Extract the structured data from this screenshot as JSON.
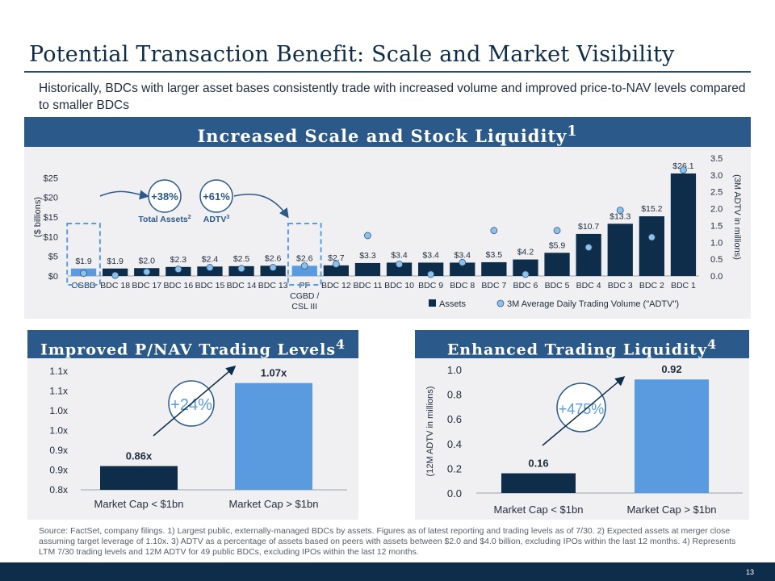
{
  "title": "Potential Transaction Benefit: Scale and Market Visibility",
  "subtitle": "Historically, BDCs with larger asset bases consistently trade with increased volume and improved price-to-NAV levels compared to smaller BDCs",
  "sections": {
    "top": "Increased Scale and Stock Liquidity",
    "top_sup": "1",
    "left": "Improved P/NAV Trading Levels",
    "left_sup": "4",
    "right": "Enhanced Trading Liquidity",
    "right_sup": "4"
  },
  "callouts": {
    "assets_pct": "+38%",
    "assets_label": "Total Assets",
    "assets_sup": "2",
    "adtv_pct": "+61%",
    "adtv_label": "ADTV",
    "adtv_sup": "3",
    "pnav_pct": "+24%",
    "liq_pct": "+475%"
  },
  "colors": {
    "navy": "#0e2d4a",
    "light_blue": "#5a9be0",
    "accent": "#2b5a8a",
    "dot": "#8ec0e8"
  },
  "chart_data": [
    {
      "type": "bar",
      "title": "Increased Scale and Stock Liquidity",
      "categories": [
        "CGBD",
        "BDC 18",
        "BDC 17",
        "BDC 16",
        "BDC 15",
        "BDC 14",
        "BDC 13",
        "PF CGBD / CSL III",
        "BDC 12",
        "BDC 11",
        "BDC 10",
        "BDC 9",
        "BDC 8",
        "BDC 7",
        "BDC 6",
        "BDC 5",
        "BDC 4",
        "BDC 3",
        "BDC 2",
        "BDC 1"
      ],
      "series": [
        {
          "name": "Assets",
          "axis": "left",
          "values": [
            1.9,
            1.9,
            2.0,
            2.3,
            2.4,
            2.5,
            2.6,
            2.6,
            2.7,
            3.3,
            3.4,
            3.4,
            3.4,
            3.5,
            4.2,
            5.9,
            10.7,
            13.3,
            15.2,
            26.1
          ],
          "labels": [
            "$1.9",
            "$1.9",
            "$2.0",
            "$2.3",
            "$2.4",
            "$2.5",
            "$2.6",
            "$2.6",
            "$2.7",
            "$3.3",
            "$3.4",
            "$3.4",
            "$3.4",
            "$3.5",
            "$4.2",
            "$5.9",
            "$10.7",
            "$13.3",
            "$15.2",
            "$26.1"
          ]
        },
        {
          "name": "3M Average Daily Trading Volume (\"ADTV\")",
          "axis": "right",
          "type": "scatter",
          "values": [
            0.08,
            0.02,
            0.12,
            0.2,
            0.25,
            0.22,
            0.25,
            0.3,
            0.35,
            1.2,
            0.35,
            0.05,
            0.4,
            1.35,
            0.05,
            1.35,
            0.85,
            1.95,
            1.15,
            3.15
          ]
        }
      ],
      "ylabel": "($ billions)",
      "ylabel_right": "(3M ADTV in millions)",
      "ylim": [
        0,
        30
      ],
      "ylim_right": [
        0,
        3.5
      ],
      "yticks": [
        "$0",
        "$5",
        "$10",
        "$15",
        "$20",
        "$25"
      ],
      "yticks_right": [
        "0.0",
        "0.5",
        "1.0",
        "1.5",
        "2.0",
        "2.5",
        "3.0",
        "3.5"
      ],
      "legend": [
        "Assets",
        "3M Average Daily Trading Volume (\"ADTV\")"
      ]
    },
    {
      "type": "bar",
      "title": "Improved P/NAV Trading Levels",
      "categories": [
        "Market Cap < $1bn",
        "Market Cap > $1bn"
      ],
      "values": [
        0.86,
        1.07
      ],
      "labels": [
        "0.86x",
        "1.07x"
      ],
      "ylim": [
        0.8,
        1.1
      ],
      "yticks": [
        "0.8x",
        "0.9x",
        "0.9x",
        "1.0x",
        "1.0x",
        "1.1x",
        "1.1x"
      ]
    },
    {
      "type": "bar",
      "title": "Enhanced Trading Liquidity",
      "categories": [
        "Market Cap < $1bn",
        "Market Cap > $1bn"
      ],
      "values": [
        0.16,
        0.92
      ],
      "labels": [
        "0.16",
        "0.92"
      ],
      "ylabel": "(12M ADTV in millions)",
      "ylim": [
        0,
        1.0
      ],
      "yticks": [
        "0.0",
        "0.2",
        "0.4",
        "0.6",
        "0.8",
        "1.0"
      ]
    }
  ],
  "source": "Source: FactSet, company filings. 1) Largest public, externally-managed BDCs by assets. Figures as of latest reporting and trading levels as of 7/30. 2) Expected assets at merger close assuming target leverage of 1.10x. 3) ADTV as a percentage of assets based on peers with assets between $2.0 and $4.0 billion, excluding IPOs within the last 12 months. 4) Represents LTM 7/30 trading levels and 12M ADTV for 49 public BDCs, excluding IPOs within the last 12 months.",
  "page_number": "13"
}
